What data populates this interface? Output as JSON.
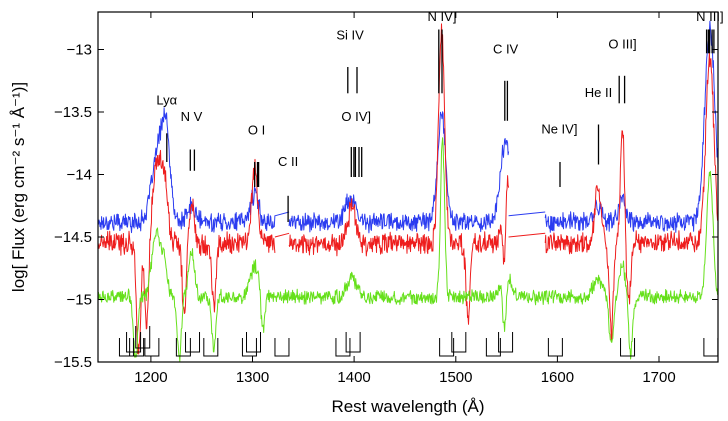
{
  "chart_data": {
    "type": "line",
    "title": "",
    "xlabel": "Rest wavelength (Å)",
    "ylabel": "log[ Flux (erg cm⁻² s⁻¹ Å⁻¹)]",
    "xlim": [
      1148,
      1758
    ],
    "ylim": [
      -15.5,
      -12.7
    ],
    "grid": false,
    "xticks": [
      1200,
      1300,
      1400,
      1500,
      1600,
      1700
    ],
    "yticks": [
      -15.5,
      -15,
      -14.5,
      -14,
      -13.5,
      -13
    ],
    "xtick_labels": [
      "1200",
      "1300",
      "1400",
      "1500",
      "1600",
      "1700"
    ],
    "ytick_labels": [
      "−15.5",
      "−15",
      "−14.5",
      "−14",
      "−13.5",
      "−13"
    ],
    "series": [
      {
        "name": "blue spectrum",
        "color": "#2b3cf0",
        "base": -14.38,
        "noise": 0.06,
        "gaps": [
          [
            1322,
            1336
          ],
          [
            1552,
            1588
          ]
        ],
        "features": [
          {
            "x": 1207,
            "amp": 0.55,
            "w": 6
          },
          {
            "x": 1215,
            "amp": 0.6,
            "w": 4
          },
          {
            "x": 1240,
            "amp": 0.12,
            "w": 4
          },
          {
            "x": 1302,
            "amp": 0.22,
            "w": 4
          },
          {
            "x": 1396,
            "amp": 0.18,
            "w": 5
          },
          {
            "x": 1486,
            "amp": 0.85,
            "w": 4
          },
          {
            "x": 1549,
            "amp": 0.65,
            "w": 5
          },
          {
            "x": 1640,
            "amp": 0.12,
            "w": 4
          },
          {
            "x": 1664,
            "amp": 0.2,
            "w": 3
          },
          {
            "x": 1750,
            "amp": 1.55,
            "w": 5
          }
        ]
      },
      {
        "name": "red spectrum",
        "color": "#ee1d1d",
        "base": -14.55,
        "noise": 0.07,
        "gaps": [
          [
            1322,
            1336
          ],
          [
            1552,
            1588
          ]
        ],
        "features": [
          {
            "x": 1207,
            "amp": 0.65,
            "w": 5
          },
          {
            "x": 1214,
            "amp": 0.3,
            "w": 3
          },
          {
            "x": 1240,
            "amp": 0.3,
            "w": 3
          },
          {
            "x": 1302,
            "amp": 0.6,
            "w": 3
          },
          {
            "x": 1398,
            "amp": 0.3,
            "w": 4
          },
          {
            "x": 1486,
            "amp": 1.7,
            "w": 3
          },
          {
            "x": 1549,
            "amp": 1.05,
            "w": 3
          },
          {
            "x": 1640,
            "amp": 0.45,
            "w": 3
          },
          {
            "x": 1664,
            "amp": 0.95,
            "w": 2
          },
          {
            "x": 1750,
            "amp": 1.5,
            "w": 4
          }
        ],
        "dips": [
          {
            "x": 1188,
            "depth": 0.9,
            "w": 2
          },
          {
            "x": 1196,
            "depth": 0.7,
            "w": 2
          },
          {
            "x": 1233,
            "depth": 0.6,
            "w": 2
          },
          {
            "x": 1262,
            "depth": 0.5,
            "w": 2
          },
          {
            "x": 1512,
            "depth": 0.6,
            "w": 2
          },
          {
            "x": 1548,
            "depth": 1.1,
            "w": 2
          },
          {
            "x": 1653,
            "depth": 0.7,
            "w": 2
          },
          {
            "x": 1670,
            "depth": 0.5,
            "w": 2
          }
        ]
      },
      {
        "name": "green spectrum",
        "color": "#66e01b",
        "base": -14.98,
        "noise": 0.045,
        "gaps": [],
        "features": [
          {
            "x": 1205,
            "amp": 0.5,
            "w": 4
          },
          {
            "x": 1213,
            "amp": 0.3,
            "w": 3
          },
          {
            "x": 1240,
            "amp": 0.35,
            "w": 3
          },
          {
            "x": 1303,
            "amp": 0.25,
            "w": 5
          },
          {
            "x": 1398,
            "amp": 0.15,
            "w": 5
          },
          {
            "x": 1487,
            "amp": 1.25,
            "w": 2
          },
          {
            "x": 1549,
            "amp": 0.28,
            "w": 4
          },
          {
            "x": 1640,
            "amp": 0.12,
            "w": 5
          },
          {
            "x": 1664,
            "amp": 0.25,
            "w": 3
          },
          {
            "x": 1750,
            "amp": 1.0,
            "w": 3
          }
        ],
        "dips": [
          {
            "x": 1185,
            "depth": 0.5,
            "w": 2
          },
          {
            "x": 1228,
            "depth": 0.5,
            "w": 2
          },
          {
            "x": 1262,
            "depth": 0.4,
            "w": 2
          },
          {
            "x": 1310,
            "depth": 0.35,
            "w": 2
          },
          {
            "x": 1548,
            "depth": 0.5,
            "w": 2
          },
          {
            "x": 1653,
            "depth": 0.4,
            "w": 2
          },
          {
            "x": 1672,
            "depth": 0.45,
            "w": 2
          }
        ]
      }
    ],
    "emission_lines": [
      {
        "label": "Lyα",
        "x": 1215.7,
        "ticks": [
          1215.7
        ],
        "y_label": -13.44,
        "y_top": -13.67,
        "y_bot": -13.9
      },
      {
        "label": "N V",
        "x": 1240,
        "ticks": [
          1238.8,
          1242.8
        ],
        "y_label": -13.57,
        "y_top": -13.8,
        "y_bot": -13.97
      },
      {
        "label": "O I",
        "x": 1304,
        "ticks": [
          1302.2,
          1304.9,
          1306.0
        ],
        "y_label": -13.68,
        "y_top": -13.9,
        "y_bot": -14.1
      },
      {
        "label": "C II",
        "x": 1335,
        "ticks": [
          1335.0
        ],
        "y_label": -13.93,
        "y_top": -14.17,
        "y_bot": -14.38
      },
      {
        "label": "Si IV",
        "x": 1396,
        "ticks": [
          1393.8,
          1402.8
        ],
        "y_label": -12.92,
        "y_top": -13.14,
        "y_bot": -13.35
      },
      {
        "label": "O IV]",
        "x": 1402,
        "ticks": [
          1397.2,
          1399.8,
          1401.2,
          1404.8,
          1407.4
        ],
        "y_label": -13.57,
        "y_top": -13.78,
        "y_bot": -14.02
      },
      {
        "label": "N IV]",
        "x": 1486.5,
        "ticks": [
          1483.3,
          1486.5
        ],
        "y_label": -12.77,
        "y_top": -12.84,
        "y_bot": -13.35
      },
      {
        "label": "C IV",
        "x": 1549,
        "ticks": [
          1548.2,
          1550.8
        ],
        "y_label": -13.03,
        "y_top": -13.25,
        "y_bot": -13.57
      },
      {
        "label": "Ne IV]",
        "x": 1602,
        "ticks": [
          1602.5
        ],
        "y_label": -13.67,
        "y_top": -13.9,
        "y_bot": -14.1
      },
      {
        "label": "He II",
        "x": 1640.4,
        "ticks": [
          1640.4
        ],
        "y_label": -13.38,
        "y_top": -13.6,
        "y_bot": -13.92
      },
      {
        "label": "O III]",
        "x": 1664,
        "ticks": [
          1660.8,
          1666.1
        ],
        "y_label": -12.99,
        "y_top": -13.21,
        "y_bot": -13.43
      },
      {
        "label": "N III]",
        "x": 1750,
        "ticks": [
          1746.8,
          1748.6,
          1749.7,
          1752.2,
          1754.0
        ],
        "y_label": -12.77,
        "y_top": -12.84,
        "y_bot": -13.03
      }
    ],
    "absorption_brackets": [
      {
        "x": 1176,
        "level": 0
      },
      {
        "x": 1186,
        "level": 0
      },
      {
        "x": 1183,
        "level": 1
      },
      {
        "x": 1192,
        "level": 2
      },
      {
        "x": 1201,
        "level": 0
      },
      {
        "x": 1232,
        "level": 0
      },
      {
        "x": 1241,
        "level": 1
      },
      {
        "x": 1259,
        "level": 0
      },
      {
        "x": 1297,
        "level": 0
      },
      {
        "x": 1301,
        "level": 1
      },
      {
        "x": 1329,
        "level": 0
      },
      {
        "x": 1389,
        "level": 0
      },
      {
        "x": 1399,
        "level": 1
      },
      {
        "x": 1491,
        "level": 0
      },
      {
        "x": 1503,
        "level": 1
      },
      {
        "x": 1537,
        "level": 0
      },
      {
        "x": 1549,
        "level": 1
      },
      {
        "x": 1598,
        "level": 0
      },
      {
        "x": 1669,
        "level": 0
      },
      {
        "x": 1751,
        "level": 0
      }
    ]
  }
}
